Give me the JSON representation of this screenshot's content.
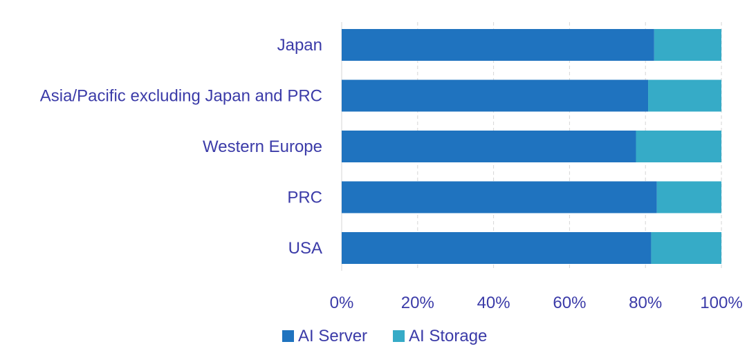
{
  "chart_data": {
    "type": "bar",
    "orientation": "horizontal",
    "stacked": true,
    "categories": [
      "Japan",
      "Asia/Pacific excluding Japan and PRC",
      "Western Europe",
      "PRC",
      "USA"
    ],
    "series": [
      {
        "name": "AI Server",
        "color": "#1f73bf",
        "values": [
          82.3,
          80.7,
          77.5,
          83.0,
          81.5
        ]
      },
      {
        "name": "AI Storage",
        "color": "#36abc7",
        "values": [
          17.7,
          19.3,
          22.5,
          17.0,
          18.5
        ]
      }
    ],
    "xlim": [
      0,
      100
    ],
    "xticks": [
      "0%",
      "20%",
      "40%",
      "60%",
      "80%",
      "100%"
    ],
    "xtick_values": [
      0,
      20,
      40,
      60,
      80,
      100
    ],
    "grid": true,
    "legend_position": "bottom"
  }
}
